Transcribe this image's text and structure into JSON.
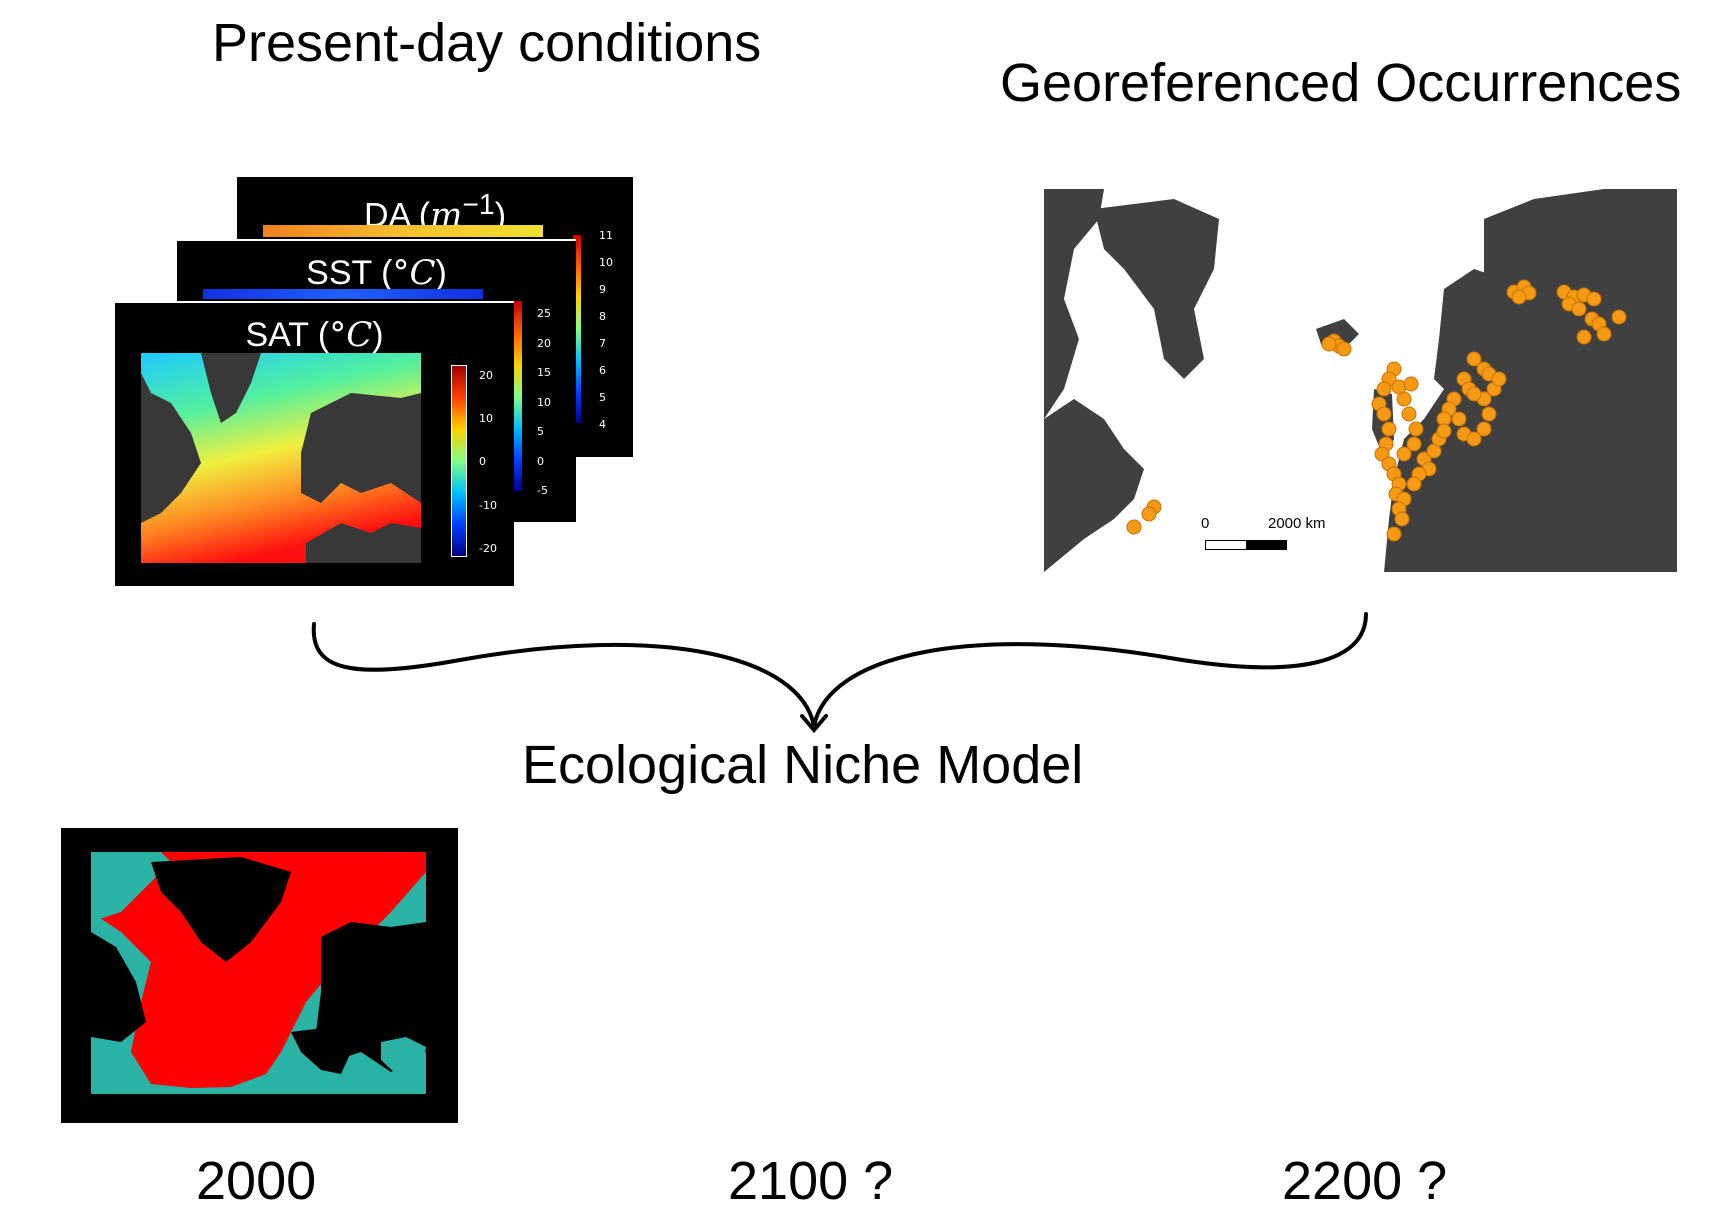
{
  "headings": {
    "present": "Present-day conditions",
    "occurrences": "Georeferenced Occurrences",
    "model": "Ecological Niche Model"
  },
  "layers": [
    {
      "name": "DA",
      "unit_math": "m",
      "unit_sup": "−1",
      "colorbar_ticks": [
        "11",
        "10",
        "9",
        "8",
        "7",
        "6",
        "5",
        "4"
      ]
    },
    {
      "name": "SST",
      "unit_math": "°C",
      "colorbar_ticks": [
        "25",
        "20",
        "15",
        "10",
        "5",
        "0",
        "-5"
      ]
    },
    {
      "name": "SAT",
      "unit_math": "°C",
      "colorbar_ticks": [
        "20",
        "10",
        "0",
        "-10",
        "-20"
      ]
    }
  ],
  "scale_bar": {
    "start": "0",
    "end": "2000 km"
  },
  "years": [
    "2000",
    "2100 ?",
    "2200 ?"
  ],
  "colors": {
    "land_gray": "#404040",
    "occurrence_orange": "#f59a14",
    "suitable_red": "#ff0000",
    "ocean_teal": "#2ab3a5",
    "panel_black": "#000000"
  }
}
